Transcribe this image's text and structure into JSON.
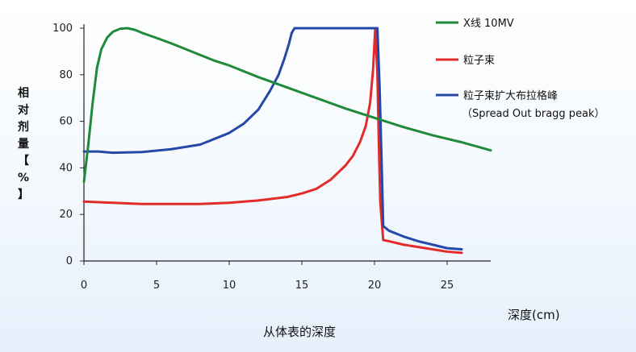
{
  "chart_data": {
    "type": "line",
    "title": "",
    "xlabel": "从体表的深度",
    "xunit_label": "深度(cm)",
    "ylabel_chars": [
      "相",
      "对",
      "剂",
      "量",
      "【",
      "%",
      "】"
    ],
    "xlim": [
      0,
      28
    ],
    "ylim": [
      0,
      100
    ],
    "xticks": [
      0,
      5,
      10,
      15,
      20,
      25
    ],
    "yticks": [
      0,
      20,
      40,
      60,
      80,
      100
    ],
    "grid": false,
    "legend_position": "top-right",
    "series": [
      {
        "name": "X线 10MV",
        "color": "#1e8a3a",
        "x": [
          0,
          0.3,
          0.6,
          0.9,
          1.2,
          1.6,
          2.0,
          2.5,
          3.0,
          3.5,
          4.0,
          5,
          6,
          7,
          8,
          9,
          10,
          12,
          14,
          16,
          18,
          20,
          22,
          24,
          26,
          28
        ],
        "y": [
          34,
          50,
          68,
          83,
          91,
          96,
          98.5,
          99.8,
          100,
          99.3,
          98,
          95.8,
          93.5,
          91,
          88.5,
          86,
          84,
          79,
          74.5,
          70,
          65.5,
          61.5,
          57.5,
          54,
          51,
          47.5
        ]
      },
      {
        "name": "粒子束",
        "color": "#e32b2b",
        "x": [
          0,
          2,
          4,
          6,
          8,
          10,
          12,
          14,
          15,
          16,
          17,
          18,
          18.5,
          19,
          19.4,
          19.7,
          19.9,
          20.05,
          20.2,
          20.3,
          20.4,
          20.6,
          21,
          22,
          23,
          24,
          25,
          26
        ],
        "y": [
          25.5,
          25,
          24.5,
          24.5,
          24.5,
          25,
          26,
          27.5,
          29,
          31,
          35,
          41,
          45,
          51,
          58,
          68,
          82,
          100,
          80,
          50,
          25,
          9,
          8.5,
          7,
          6,
          5,
          4,
          3.5
        ]
      },
      {
        "name": "粒子束扩大布拉格峰",
        "sub_label": "（Spread Out bragg peak）",
        "color": "#2448a8",
        "x": [
          0,
          1,
          2,
          4,
          6,
          8,
          10,
          11,
          12,
          12.8,
          13.4,
          13.8,
          14.1,
          14.3,
          14.5,
          15,
          17,
          19,
          20.2,
          20.35,
          20.5,
          20.6,
          21,
          22,
          23,
          24,
          25,
          26
        ],
        "y": [
          47,
          47,
          46.5,
          46.8,
          48,
          50,
          55,
          59,
          65,
          73,
          80,
          87,
          93,
          98,
          100,
          100,
          100,
          100,
          100,
          75,
          40,
          15,
          13,
          10.5,
          8.5,
          7,
          5.5,
          5
        ]
      }
    ]
  }
}
